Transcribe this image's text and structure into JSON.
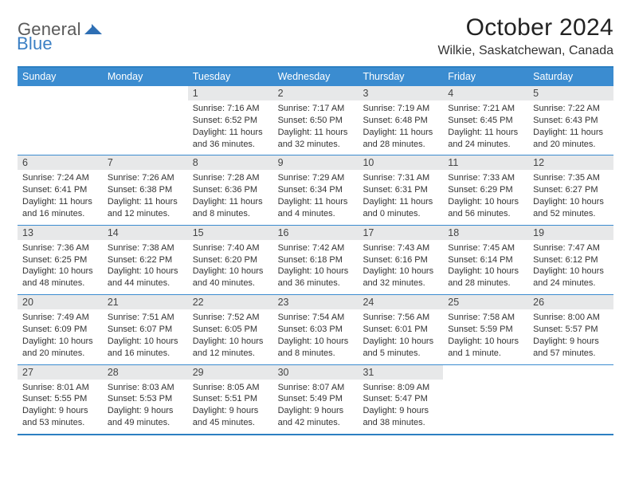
{
  "logo": {
    "general": "General",
    "blue": "Blue"
  },
  "title": "October 2024",
  "location": "Wilkie, Saskatchewan, Canada",
  "colors": {
    "header_bg": "#3b8cd0",
    "border": "#2c7fc2",
    "daynum_bg": "#e7e8e9",
    "text": "#333333",
    "logo_gray": "#5a5a5a",
    "logo_blue": "#3b7fc4"
  },
  "weekdays": [
    "Sunday",
    "Monday",
    "Tuesday",
    "Wednesday",
    "Thursday",
    "Friday",
    "Saturday"
  ],
  "weeks": [
    [
      null,
      null,
      {
        "n": "1",
        "sunrise": "Sunrise: 7:16 AM",
        "sunset": "Sunset: 6:52 PM",
        "daylight": "Daylight: 11 hours and 36 minutes."
      },
      {
        "n": "2",
        "sunrise": "Sunrise: 7:17 AM",
        "sunset": "Sunset: 6:50 PM",
        "daylight": "Daylight: 11 hours and 32 minutes."
      },
      {
        "n": "3",
        "sunrise": "Sunrise: 7:19 AM",
        "sunset": "Sunset: 6:48 PM",
        "daylight": "Daylight: 11 hours and 28 minutes."
      },
      {
        "n": "4",
        "sunrise": "Sunrise: 7:21 AM",
        "sunset": "Sunset: 6:45 PM",
        "daylight": "Daylight: 11 hours and 24 minutes."
      },
      {
        "n": "5",
        "sunrise": "Sunrise: 7:22 AM",
        "sunset": "Sunset: 6:43 PM",
        "daylight": "Daylight: 11 hours and 20 minutes."
      }
    ],
    [
      {
        "n": "6",
        "sunrise": "Sunrise: 7:24 AM",
        "sunset": "Sunset: 6:41 PM",
        "daylight": "Daylight: 11 hours and 16 minutes."
      },
      {
        "n": "7",
        "sunrise": "Sunrise: 7:26 AM",
        "sunset": "Sunset: 6:38 PM",
        "daylight": "Daylight: 11 hours and 12 minutes."
      },
      {
        "n": "8",
        "sunrise": "Sunrise: 7:28 AM",
        "sunset": "Sunset: 6:36 PM",
        "daylight": "Daylight: 11 hours and 8 minutes."
      },
      {
        "n": "9",
        "sunrise": "Sunrise: 7:29 AM",
        "sunset": "Sunset: 6:34 PM",
        "daylight": "Daylight: 11 hours and 4 minutes."
      },
      {
        "n": "10",
        "sunrise": "Sunrise: 7:31 AM",
        "sunset": "Sunset: 6:31 PM",
        "daylight": "Daylight: 11 hours and 0 minutes."
      },
      {
        "n": "11",
        "sunrise": "Sunrise: 7:33 AM",
        "sunset": "Sunset: 6:29 PM",
        "daylight": "Daylight: 10 hours and 56 minutes."
      },
      {
        "n": "12",
        "sunrise": "Sunrise: 7:35 AM",
        "sunset": "Sunset: 6:27 PM",
        "daylight": "Daylight: 10 hours and 52 minutes."
      }
    ],
    [
      {
        "n": "13",
        "sunrise": "Sunrise: 7:36 AM",
        "sunset": "Sunset: 6:25 PM",
        "daylight": "Daylight: 10 hours and 48 minutes."
      },
      {
        "n": "14",
        "sunrise": "Sunrise: 7:38 AM",
        "sunset": "Sunset: 6:22 PM",
        "daylight": "Daylight: 10 hours and 44 minutes."
      },
      {
        "n": "15",
        "sunrise": "Sunrise: 7:40 AM",
        "sunset": "Sunset: 6:20 PM",
        "daylight": "Daylight: 10 hours and 40 minutes."
      },
      {
        "n": "16",
        "sunrise": "Sunrise: 7:42 AM",
        "sunset": "Sunset: 6:18 PM",
        "daylight": "Daylight: 10 hours and 36 minutes."
      },
      {
        "n": "17",
        "sunrise": "Sunrise: 7:43 AM",
        "sunset": "Sunset: 6:16 PM",
        "daylight": "Daylight: 10 hours and 32 minutes."
      },
      {
        "n": "18",
        "sunrise": "Sunrise: 7:45 AM",
        "sunset": "Sunset: 6:14 PM",
        "daylight": "Daylight: 10 hours and 28 minutes."
      },
      {
        "n": "19",
        "sunrise": "Sunrise: 7:47 AM",
        "sunset": "Sunset: 6:12 PM",
        "daylight": "Daylight: 10 hours and 24 minutes."
      }
    ],
    [
      {
        "n": "20",
        "sunrise": "Sunrise: 7:49 AM",
        "sunset": "Sunset: 6:09 PM",
        "daylight": "Daylight: 10 hours and 20 minutes."
      },
      {
        "n": "21",
        "sunrise": "Sunrise: 7:51 AM",
        "sunset": "Sunset: 6:07 PM",
        "daylight": "Daylight: 10 hours and 16 minutes."
      },
      {
        "n": "22",
        "sunrise": "Sunrise: 7:52 AM",
        "sunset": "Sunset: 6:05 PM",
        "daylight": "Daylight: 10 hours and 12 minutes."
      },
      {
        "n": "23",
        "sunrise": "Sunrise: 7:54 AM",
        "sunset": "Sunset: 6:03 PM",
        "daylight": "Daylight: 10 hours and 8 minutes."
      },
      {
        "n": "24",
        "sunrise": "Sunrise: 7:56 AM",
        "sunset": "Sunset: 6:01 PM",
        "daylight": "Daylight: 10 hours and 5 minutes."
      },
      {
        "n": "25",
        "sunrise": "Sunrise: 7:58 AM",
        "sunset": "Sunset: 5:59 PM",
        "daylight": "Daylight: 10 hours and 1 minute."
      },
      {
        "n": "26",
        "sunrise": "Sunrise: 8:00 AM",
        "sunset": "Sunset: 5:57 PM",
        "daylight": "Daylight: 9 hours and 57 minutes."
      }
    ],
    [
      {
        "n": "27",
        "sunrise": "Sunrise: 8:01 AM",
        "sunset": "Sunset: 5:55 PM",
        "daylight": "Daylight: 9 hours and 53 minutes."
      },
      {
        "n": "28",
        "sunrise": "Sunrise: 8:03 AM",
        "sunset": "Sunset: 5:53 PM",
        "daylight": "Daylight: 9 hours and 49 minutes."
      },
      {
        "n": "29",
        "sunrise": "Sunrise: 8:05 AM",
        "sunset": "Sunset: 5:51 PM",
        "daylight": "Daylight: 9 hours and 45 minutes."
      },
      {
        "n": "30",
        "sunrise": "Sunrise: 8:07 AM",
        "sunset": "Sunset: 5:49 PM",
        "daylight": "Daylight: 9 hours and 42 minutes."
      },
      {
        "n": "31",
        "sunrise": "Sunrise: 8:09 AM",
        "sunset": "Sunset: 5:47 PM",
        "daylight": "Daylight: 9 hours and 38 minutes."
      },
      null,
      null
    ]
  ]
}
